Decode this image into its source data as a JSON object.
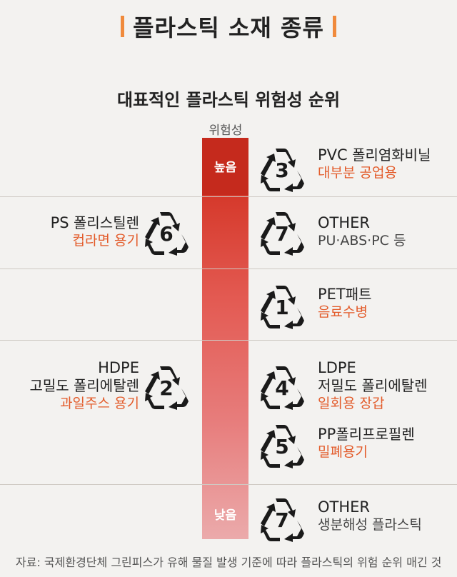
{
  "title": "플라스틱 소재 종류",
  "subtitle": "대표적인 플라스틱 위험성 순위",
  "risk_label": "위험성",
  "levels": {
    "high": "높음",
    "low": "낮음"
  },
  "items": [
    {
      "code": "3",
      "name": "PVC",
      "kor": "폴리염화비닐",
      "use": "대부분 공업용"
    },
    {
      "code": "6",
      "name": "PS",
      "kor": "폴리스틸렌",
      "use": "컵라면 용기"
    },
    {
      "code": "7",
      "name": "OTHER",
      "kor": "",
      "use": "PU·ABS·PC 등"
    },
    {
      "code": "1",
      "name": "PET",
      "kor": "패트",
      "use": "음료수병"
    },
    {
      "code": "2",
      "name": "HDPE",
      "kor": "고밀도 폴리에탈렌",
      "use": "과일주스 용기"
    },
    {
      "code": "4",
      "name": "LDPE",
      "kor": "저밀도 폴리에탈렌",
      "use": "일회용 장갑"
    },
    {
      "code": "5",
      "name": "PP",
      "kor": "폴리프로필렌",
      "use": "밀폐용기"
    },
    {
      "code": "7",
      "name": "OTHER",
      "kor": "",
      "use": "생분해성 플라스틱"
    }
  ],
  "source": "자료: 국제환경단체 그린피스가 유해 물질 발생 기준에 따라 플라스틱의 위험 순위 매긴 것",
  "colors": {
    "accent": "#e35b2a",
    "bar_top": "#c52a1d",
    "bar_bottom": "#ebaaab",
    "title_bar": "#f08a3c"
  }
}
